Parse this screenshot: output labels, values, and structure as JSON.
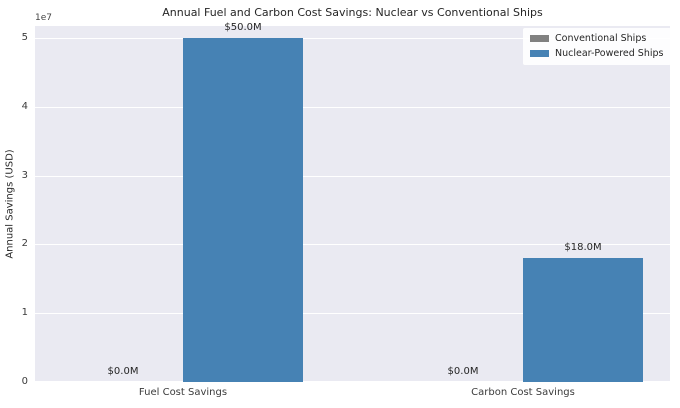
{
  "chart_data": {
    "type": "bar",
    "title": "Annual Fuel and Carbon Cost Savings: Nuclear vs Conventional Ships",
    "xlabel": "",
    "ylabel": "Annual Savings (USD)",
    "categories": [
      "Fuel Cost Savings",
      "Carbon Cost Savings"
    ],
    "series": [
      {
        "name": "Conventional Ships",
        "color": "#808080",
        "values": [
          0,
          0
        ],
        "data_labels": [
          "$0.0M",
          "$0.0M"
        ]
      },
      {
        "name": "Nuclear-Powered Ships",
        "color": "#4682b4",
        "values": [
          50000000,
          18000000
        ],
        "data_labels": [
          "$50.0M",
          "$18.0M"
        ]
      }
    ],
    "y_axis": {
      "offset_text": "1e7",
      "tick_values": [
        0,
        10000000,
        20000000,
        30000000,
        40000000,
        50000000
      ],
      "tick_labels": [
        "0",
        "1",
        "2",
        "3",
        "4",
        "5"
      ]
    },
    "ylim": [
      0,
      51750000
    ],
    "grid": true,
    "legend_position": "upper right",
    "colors": {
      "plot_background": "#eaeaf2",
      "grid_color": "#ffffff",
      "text_color": "#262626"
    }
  }
}
